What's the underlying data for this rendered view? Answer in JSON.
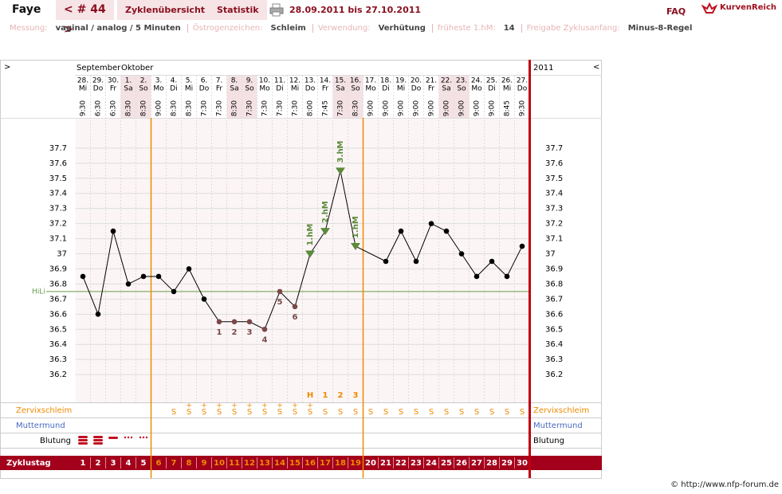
{
  "header": {
    "name": "Faye",
    "cycle": "< # 44 >",
    "tabs": [
      "Zyklenübersicht",
      "Statistik"
    ],
    "range": "28.09.2011 bis 27.10.2011",
    "faq": "FAQ",
    "brand": "KurvenReich"
  },
  "info": [
    {
      "label": "Messung:",
      "value": "vaginal / analog / 5 Minuten"
    },
    {
      "label": "Östrogenzeichen:",
      "value": "Schleim"
    },
    {
      "label": "Verwendung:",
      "value": "Verhütung"
    },
    {
      "label": "früheste 1.hM:",
      "value": "14"
    },
    {
      "label": "Freigabe Zyklusanfang:",
      "value": "Minus-8-Regel"
    }
  ],
  "footer": "© http://www.nfp-forum.de",
  "chart_data": {
    "type": "line",
    "nav": [
      ">",
      "<"
    ],
    "months": [
      "September",
      "Oktober"
    ],
    "year": "2011",
    "days": [
      "28.",
      "29.",
      "30.",
      "1.",
      "2.",
      "3.",
      "4.",
      "5.",
      "6.",
      "7.",
      "8.",
      "9.",
      "10.",
      "11.",
      "12.",
      "13.",
      "14.",
      "15.",
      "16.",
      "17.",
      "18.",
      "19.",
      "20.",
      "21.",
      "22.",
      "23.",
      "24.",
      "25.",
      "26.",
      "27."
    ],
    "weekdays": [
      "Mi",
      "Do",
      "Fr",
      "Sa",
      "So",
      "Mo",
      "Di",
      "Mi",
      "Do",
      "Fr",
      "Sa",
      "So",
      "Mo",
      "Di",
      "Mi",
      "Do",
      "Fr",
      "Sa",
      "So",
      "Mo",
      "Di",
      "Mi",
      "Do",
      "Fr",
      "Sa",
      "So",
      "Mo",
      "Di",
      "Mi",
      "Do"
    ],
    "weekend_days": [
      "Sa",
      "So"
    ],
    "times": [
      "9:30",
      "6:30",
      "6:30",
      "8:30",
      "8:30",
      "9:00",
      "8:30",
      "8:30",
      "7:30",
      "7:30",
      "8:30",
      "7:30",
      "7:30",
      "7:30",
      "7:30",
      "8:00",
      "7:45",
      "7:30",
      "8:30",
      "9:00",
      "9:00",
      "9:00",
      "9:00",
      "9:00",
      "9:00",
      "9:00",
      "9:00",
      "9:00",
      "8:45",
      "9:30"
    ],
    "series": [
      {
        "color": "#000000",
        "values": [
          36.85,
          36.6,
          37.15,
          36.8,
          36.85,
          36.85,
          36.75,
          36.9,
          36.7,
          36.55,
          36.55,
          36.55,
          36.5,
          36.75,
          36.65,
          37.0,
          37.15,
          37.55,
          37.05,
          null,
          36.95,
          37.15,
          36.95,
          37.2,
          37.15,
          37.0,
          36.85,
          36.95,
          36.85,
          37.05
        ]
      }
    ],
    "low_labels": [
      null,
      null,
      null,
      null,
      null,
      null,
      null,
      null,
      null,
      "1",
      "2",
      "3",
      "4",
      "5",
      "6",
      null,
      null,
      null,
      null,
      null,
      null,
      null,
      null,
      null,
      null,
      null,
      null,
      null,
      null,
      null
    ],
    "high_labels": [
      null,
      null,
      null,
      null,
      null,
      null,
      null,
      null,
      null,
      null,
      null,
      null,
      null,
      null,
      null,
      "1.hM",
      "2.hM",
      "3.hM",
      "1.hM",
      null,
      null,
      null,
      null,
      null,
      null,
      null,
      null,
      null,
      null,
      null
    ],
    "low_color": "#7a4848",
    "high_color": "#5a8a3a",
    "ylim": [
      36.0,
      37.9
    ],
    "yticks": [
      36.2,
      36.3,
      36.4,
      36.5,
      36.6,
      36.7,
      36.8,
      36.9,
      37,
      37.1,
      37.2,
      37.3,
      37.4,
      37.5,
      37.6,
      37.7
    ],
    "coverline": {
      "label": "HiLi",
      "value": 36.75,
      "color": "#6a9a4a"
    },
    "rows": {
      "cervix": "Zervixschleim",
      "cervix_os": "Muttermund",
      "bleeding": "Blutung",
      "cycle_day": "Zyklustag"
    },
    "peak_marks": [
      null,
      null,
      null,
      null,
      null,
      null,
      null,
      null,
      null,
      null,
      null,
      null,
      null,
      null,
      null,
      "H",
      "1",
      "2",
      "3",
      null,
      null,
      null,
      null,
      null,
      null,
      null,
      null,
      null,
      null,
      null
    ],
    "cervix": [
      null,
      null,
      null,
      null,
      null,
      null,
      "S",
      "S",
      "S",
      "S",
      "S",
      "S",
      "S",
      "S",
      "S",
      "S",
      "S",
      "S",
      "S",
      "S",
      "S",
      "S",
      "S",
      "S",
      "S",
      "S",
      "S",
      "S",
      "S",
      "S"
    ],
    "cervix_plus": [
      null,
      null,
      null,
      null,
      null,
      null,
      null,
      "+",
      "+",
      "+",
      "+",
      "+",
      "+",
      "+",
      "+",
      "+",
      null,
      null,
      null,
      null,
      null,
      null,
      null,
      null,
      null,
      null,
      null,
      null,
      null,
      null
    ],
    "cycle_days": [
      1,
      2,
      3,
      4,
      5,
      6,
      7,
      8,
      9,
      10,
      11,
      12,
      13,
      14,
      15,
      16,
      17,
      18,
      19,
      20,
      21,
      22,
      23,
      24,
      25,
      26,
      27,
      28,
      29,
      30
    ],
    "fertile": [
      6,
      19
    ],
    "fertile_color": "#f08a00"
  }
}
